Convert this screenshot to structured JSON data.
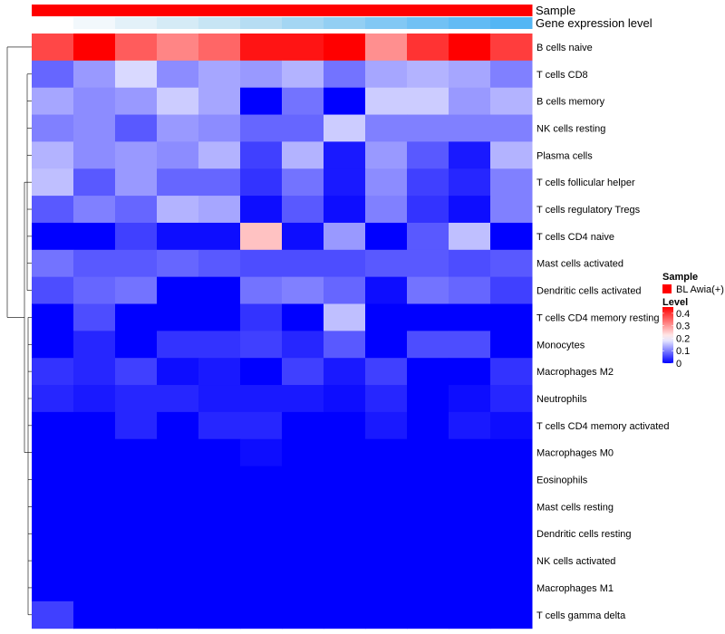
{
  "chart_data": {
    "type": "heatmap",
    "title": "",
    "color_scale": {
      "low": "#0000ff",
      "mid": "#ffffff",
      "high": "#ff0000",
      "range": [
        0,
        0.45
      ],
      "midpoint": 0.2
    },
    "row_labels": [
      "B cells naive",
      "T cells CD8",
      "B cells memory",
      "NK cells resting",
      "Plasma cells",
      "T cells follicular helper",
      "T cells regulatory  Tregs",
      "T cells CD4 naive",
      "Mast cells activated",
      "Dendritic cells activated",
      "T cells CD4 memory resting",
      "Monocytes",
      "Macrophages M2",
      "Neutrophils",
      "T cells CD4 memory activated",
      "Macrophages M0",
      "Eosinophils",
      "Mast cells resting",
      "Dendritic cells resting",
      "NK cells activated",
      "Macrophages M1",
      "T cells gamma delta"
    ],
    "n_columns": 12,
    "values": [
      [
        0.38,
        0.45,
        0.36,
        0.32,
        0.35,
        0.43,
        0.43,
        0.45,
        0.31,
        0.4,
        0.45,
        0.39
      ],
      [
        0.08,
        0.12,
        0.17,
        0.11,
        0.13,
        0.12,
        0.14,
        0.09,
        0.13,
        0.14,
        0.13,
        0.1
      ],
      [
        0.13,
        0.11,
        0.12,
        0.16,
        0.13,
        0.0,
        0.09,
        0.0,
        0.16,
        0.16,
        0.12,
        0.14
      ],
      [
        0.1,
        0.11,
        0.07,
        0.12,
        0.11,
        0.08,
        0.08,
        0.16,
        0.1,
        0.1,
        0.1,
        0.1
      ],
      [
        0.14,
        0.11,
        0.12,
        0.11,
        0.14,
        0.05,
        0.14,
        0.02,
        0.12,
        0.07,
        0.02,
        0.14
      ],
      [
        0.15,
        0.07,
        0.12,
        0.08,
        0.08,
        0.04,
        0.09,
        0.02,
        0.11,
        0.05,
        0.03,
        0.1
      ],
      [
        0.07,
        0.1,
        0.08,
        0.14,
        0.13,
        0.01,
        0.07,
        0.01,
        0.1,
        0.04,
        0.01,
        0.1
      ],
      [
        0.0,
        0.0,
        0.05,
        0.01,
        0.01,
        0.26,
        0.01,
        0.12,
        0.0,
        0.07,
        0.15,
        0.0
      ],
      [
        0.09,
        0.07,
        0.07,
        0.08,
        0.07,
        0.06,
        0.06,
        0.06,
        0.07,
        0.07,
        0.06,
        0.07
      ],
      [
        0.06,
        0.08,
        0.09,
        0.0,
        0.0,
        0.09,
        0.1,
        0.08,
        0.01,
        0.09,
        0.08,
        0.05
      ],
      [
        0.0,
        0.06,
        0.0,
        0.0,
        0.0,
        0.04,
        0.0,
        0.15,
        0.0,
        0.0,
        0.0,
        0.0
      ],
      [
        0.0,
        0.03,
        0.0,
        0.04,
        0.04,
        0.05,
        0.03,
        0.07,
        0.0,
        0.06,
        0.06,
        0.0
      ],
      [
        0.04,
        0.03,
        0.05,
        0.01,
        0.02,
        0.0,
        0.05,
        0.02,
        0.05,
        0.0,
        0.0,
        0.04
      ],
      [
        0.03,
        0.02,
        0.03,
        0.03,
        0.02,
        0.02,
        0.02,
        0.01,
        0.03,
        0.0,
        0.01,
        0.03
      ],
      [
        0.0,
        0.0,
        0.03,
        0.0,
        0.03,
        0.03,
        0.0,
        0.0,
        0.02,
        0.0,
        0.02,
        0.01
      ],
      [
        0.0,
        0.0,
        0.0,
        0.0,
        0.0,
        0.01,
        0.0,
        0.0,
        0.0,
        0.0,
        0.0,
        0.0
      ],
      [
        0.0,
        0.0,
        0.0,
        0.0,
        0.0,
        0.0,
        0.0,
        0.0,
        0.0,
        0.0,
        0.0,
        0.0
      ],
      [
        0.0,
        0.0,
        0.0,
        0.0,
        0.0,
        0.0,
        0.0,
        0.0,
        0.0,
        0.0,
        0.0,
        0.0
      ],
      [
        0.0,
        0.0,
        0.0,
        0.0,
        0.0,
        0.0,
        0.0,
        0.0,
        0.0,
        0.0,
        0.0,
        0.0
      ],
      [
        0.0,
        0.0,
        0.0,
        0.0,
        0.0,
        0.0,
        0.0,
        0.0,
        0.0,
        0.0,
        0.0,
        0.0
      ],
      [
        0.0,
        0.0,
        0.0,
        0.0,
        0.0,
        0.0,
        0.0,
        0.0,
        0.0,
        0.0,
        0.0,
        0.0
      ],
      [
        0.05,
        0.0,
        0.0,
        0.0,
        0.0,
        0.0,
        0.0,
        0.0,
        0.0,
        0.0,
        0.0,
        0.0
      ]
    ],
    "annotations": [
      {
        "name": "Sample",
        "colors": [
          "#ff0000",
          "#ff0000",
          "#ff0000",
          "#ff0000",
          "#ff0000",
          "#ff0000",
          "#ff0000",
          "#ff0000",
          "#ff0000",
          "#ff0000",
          "#ff0000",
          "#ff0000"
        ]
      },
      {
        "name": "Gene expression level",
        "colors": [
          "#ffffff",
          "#f2f8fc",
          "#e3f1f9",
          "#d5ebf6",
          "#c7e5f4",
          "#b6ddf3",
          "#a4d6f3",
          "#93cff3",
          "#82c8f4",
          "#71c1f4",
          "#62bbf4",
          "#54b6f4"
        ]
      }
    ],
    "legend": {
      "sample_title": "Sample",
      "sample_entries": [
        {
          "label": "BL Awia(+)",
          "color": "#ff0000"
        }
      ],
      "level_title": "Level",
      "level_ticks": [
        "0.4",
        "0.3",
        "0.2",
        "0.1",
        "0"
      ],
      "level_tick_values": [
        0.4,
        0.3,
        0.2,
        0.1,
        0.0
      ],
      "placement": "right"
    }
  }
}
